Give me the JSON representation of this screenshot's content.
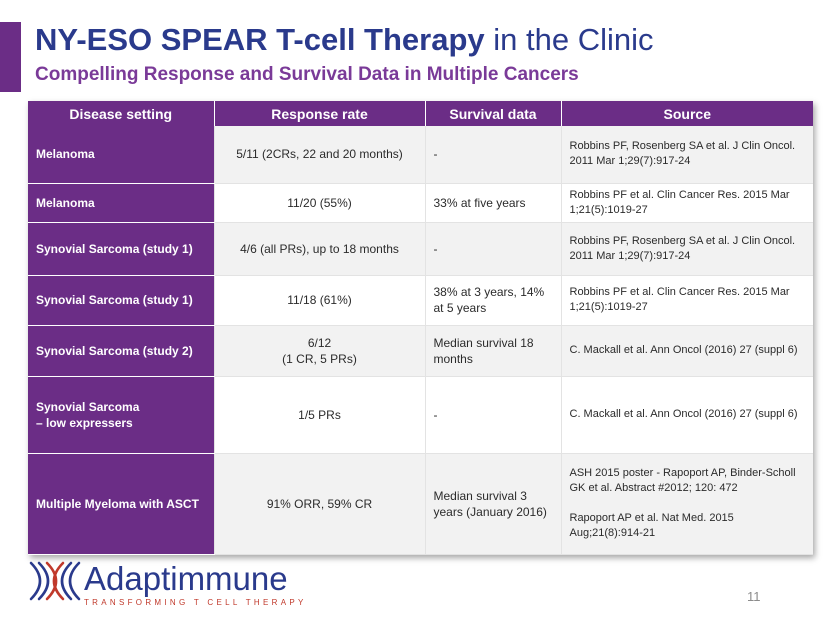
{
  "slide": {
    "title_bold": "NY-ESO SPEAR T-cell Therapy",
    "title_rest": " in the Clinic",
    "subtitle": "Compelling Response and Survival Data in Multiple Cancers",
    "page_number": "11",
    "accent_color": "#6b2d86"
  },
  "table": {
    "headers": [
      "Disease setting",
      "Response rate",
      "Survival data",
      "Source"
    ],
    "rows": [
      {
        "disease": "Melanoma",
        "response": "5/11 (2CRs, 22 and 20 months)",
        "survival": "-",
        "source": "Robbins PF, Rosenberg SA et al. J Clin Oncol. 2011 Mar 1;29(7):917-24"
      },
      {
        "disease": "Melanoma",
        "response": "11/20 (55%)",
        "survival": "33% at five years",
        "source": "Robbins PF et al. Clin Cancer Res. 2015 Mar 1;21(5):1019-27"
      },
      {
        "disease": "Synovial Sarcoma (study 1)",
        "response": "4/6 (all PRs), up to 18 months",
        "survival": "-",
        "source": "Robbins PF, Rosenberg SA et al. J Clin Oncol. 2011 Mar 1;29(7):917-24"
      },
      {
        "disease": "Synovial Sarcoma (study 1)",
        "response": "11/18 (61%)",
        "survival": "38% at 3 years, 14% at 5 years",
        "source": "Robbins PF et al. Clin Cancer Res. 2015 Mar 1;21(5):1019-27"
      },
      {
        "disease": "Synovial Sarcoma (study 2)",
        "response_line1": "6/12",
        "response_line2": "(1 CR, 5 PRs)",
        "survival": "Median survival 18 months",
        "source": "C. Mackall et al. Ann Oncol (2016) 27 (suppl 6)"
      },
      {
        "disease_line1": "Synovial Sarcoma",
        "disease_line2": "– low expressers",
        "response": "1/5 PRs",
        "survival": "-",
        "source": "C. Mackall et al. Ann Oncol (2016) 27 (suppl 6)"
      },
      {
        "disease": "Multiple Myeloma with ASCT",
        "response": "91% ORR, 59% CR",
        "survival": "Median survival 3 years (January 2016)",
        "source_line1": "ASH 2015 poster - Rapoport AP, Binder-Scholl GK  et al. Abstract #2012; 120: 472",
        "source_line2": "Rapoport AP et al. Nat Med. 2015 Aug;21(8):914-21"
      }
    ]
  },
  "logo": {
    "name": "Adaptimmune",
    "tagline": "TRANSFORMING T CELL THERAPY",
    "colors": {
      "blue": "#2a3a8c",
      "red": "#c0392b"
    }
  }
}
